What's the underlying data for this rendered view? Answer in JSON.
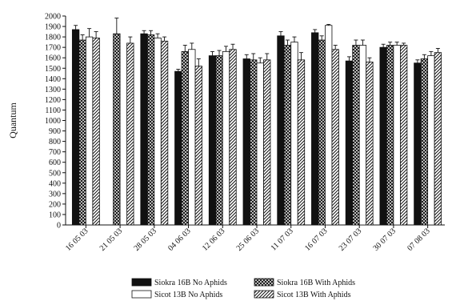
{
  "chart_data": {
    "type": "bar",
    "title": "",
    "xlabel": "",
    "ylabel": "Quantum",
    "ylim": [
      0,
      2000
    ],
    "yticks": [
      0,
      100,
      200,
      300,
      400,
      500,
      600,
      700,
      800,
      900,
      1000,
      1100,
      1200,
      1300,
      1400,
      1500,
      1600,
      1700,
      1800,
      1900,
      2000
    ],
    "grid": false,
    "legend_position": "bottom",
    "categories": [
      "16 05 03",
      "21 05 03",
      "28 05 03",
      "04 06 03",
      "12 06 03",
      "25 06 03",
      "11 07 03",
      "16 07 03",
      "23 07 03",
      "30 07 03",
      "07 08 03"
    ],
    "series": [
      {
        "name": "Siokra 16B No Aphids",
        "fill": "black",
        "values": [
          1870,
          null,
          1830,
          1470,
          1620,
          1590,
          1810,
          1840,
          1570,
          1700,
          1550
        ],
        "errors": [
          40,
          null,
          30,
          20,
          40,
          40,
          40,
          30,
          40,
          30,
          30
        ]
      },
      {
        "name": "Siokra 16B With Aphids",
        "fill": "crosshatch",
        "values": [
          1770,
          1830,
          1820,
          1660,
          1620,
          1580,
          1720,
          1770,
          1720,
          1720,
          1590
        ],
        "errors": [
          50,
          150,
          40,
          60,
          50,
          60,
          50,
          40,
          50,
          30,
          40
        ]
      },
      {
        "name": "Sicot 13B No Aphids",
        "fill": "white",
        "values": [
          1800,
          null,
          1790,
          1680,
          1660,
          1550,
          1750,
          1910,
          1720,
          1720,
          1620
        ],
        "errors": [
          80,
          null,
          40,
          60,
          50,
          50,
          50,
          10,
          50,
          30,
          40
        ]
      },
      {
        "name": "Sicot 13B With Aphids",
        "fill": "diagonal",
        "values": [
          1790,
          1740,
          1760,
          1520,
          1680,
          1580,
          1580,
          1680,
          1560,
          1720,
          1650
        ],
        "errors": [
          60,
          60,
          40,
          70,
          50,
          60,
          70,
          40,
          40,
          20,
          40
        ]
      }
    ]
  }
}
